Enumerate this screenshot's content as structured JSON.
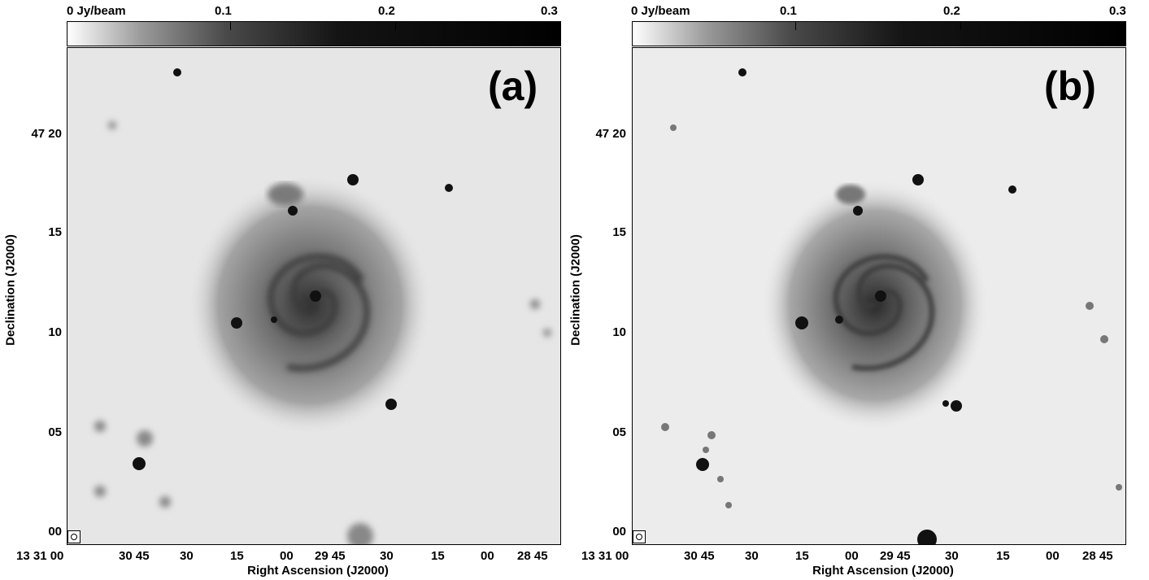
{
  "colorbar": {
    "label_0": "0 Jy/beam",
    "label_1": "0.1",
    "label_2": "0.2",
    "label_3": "0.3"
  },
  "axes": {
    "ylabel": "Declination (J2000)",
    "xlabel": "Right Ascension (J2000)",
    "yticks": [
      "47 20",
      "15",
      "10",
      "05",
      "00"
    ],
    "xticks": [
      "13 31 00",
      "30 45",
      "30",
      "15",
      "00",
      "29 45",
      "30",
      "15",
      "00",
      "28 45"
    ]
  },
  "panels": [
    {
      "label": "(a)"
    },
    {
      "label": "(b)"
    }
  ]
}
